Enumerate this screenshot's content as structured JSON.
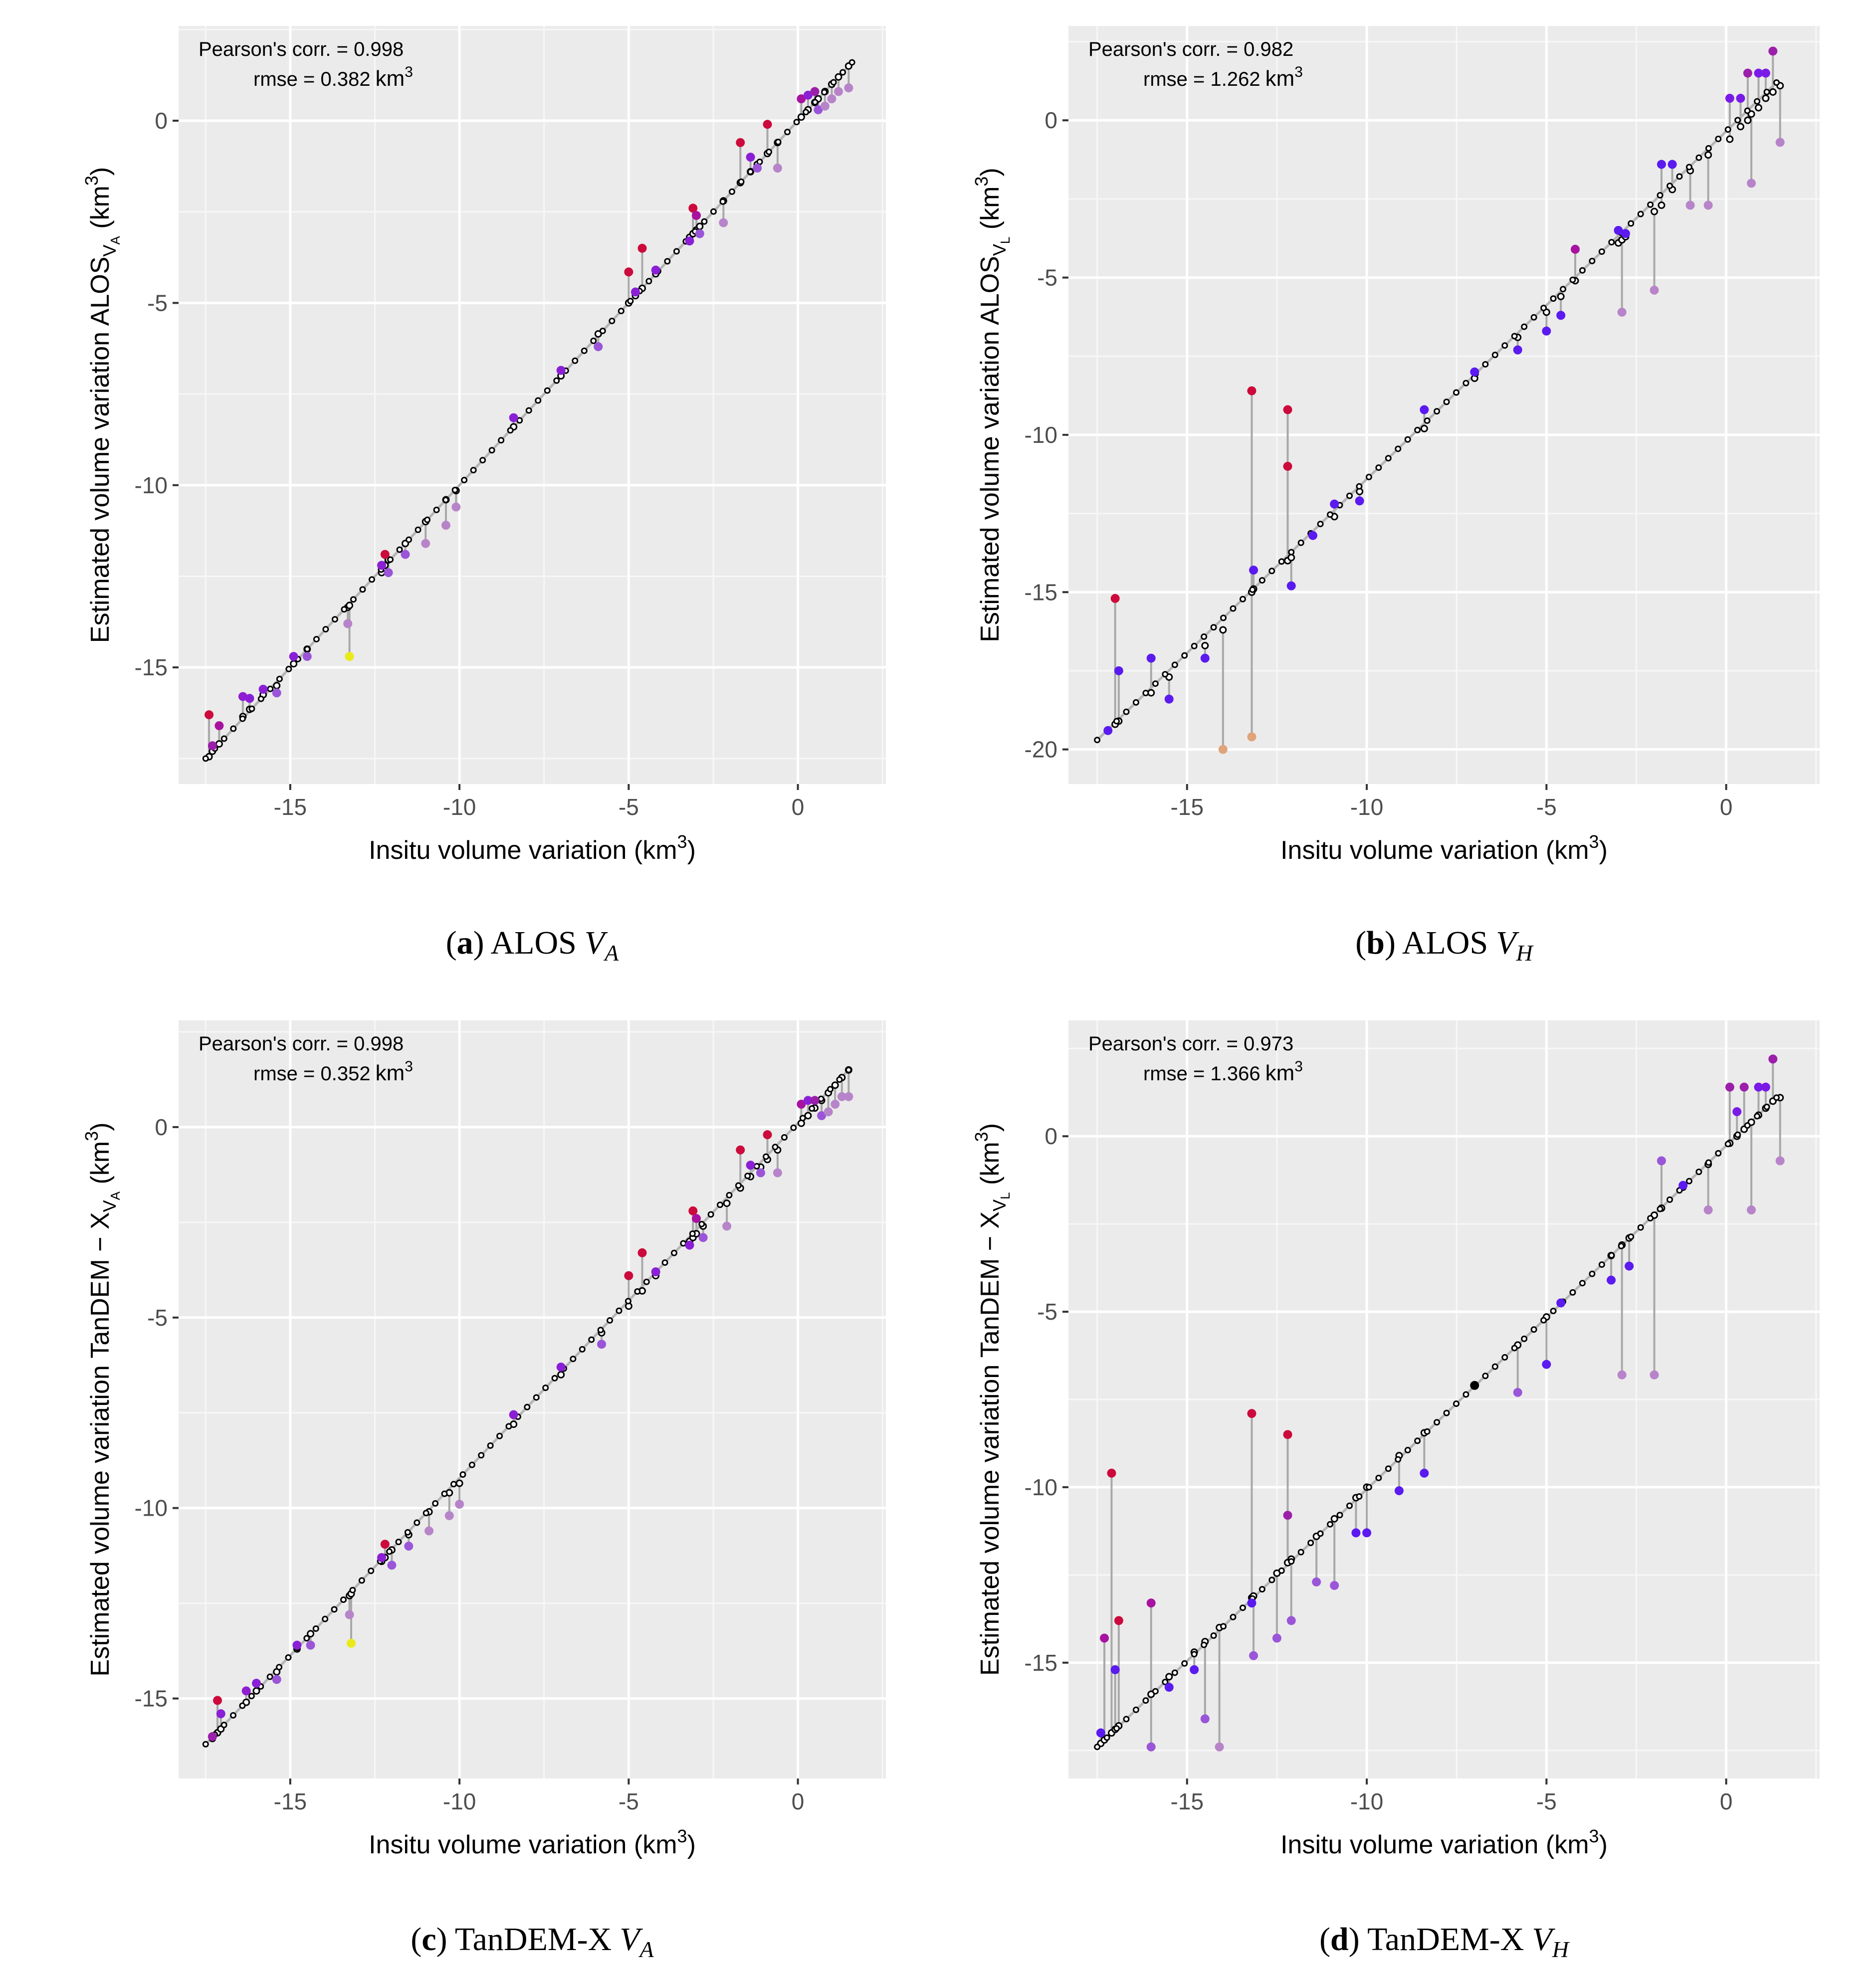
{
  "chart_data": [
    {
      "id": "a",
      "type": "scatter",
      "panel_label": "a",
      "caption_text": "ALOS",
      "caption_var_letter": "V",
      "caption_var_sub": "A",
      "xlabel": "Insitu volume variation (km",
      "xlabel_sup": "3",
      "xlabel_close": ")",
      "ylabel": "Estimated volume variation ALOS",
      "ylabel_sub": "V",
      "ylabel_subsub": "A",
      "ylabel_tail": " (km",
      "ylabel_sup": "3",
      "ylabel_close": ")",
      "annotation": {
        "pearson": "Pearson's corr. = 0.998",
        "rmse": "rmse = 0.382",
        "unit": "km",
        "unit_sup": "3"
      },
      "xlim": [
        -18.3,
        2.6
      ],
      "ylim": [
        -18.2,
        2.6
      ],
      "xticks": [
        -15,
        -10,
        -5,
        0
      ],
      "xtick_labels": [
        "-15",
        "-10",
        "-5",
        "0"
      ],
      "yticks": [
        -15,
        -10,
        -5,
        0
      ],
      "ytick_labels": [
        "-15",
        "-10",
        "-5",
        "0"
      ],
      "line": [
        [
          -17.5,
          -17.5
        ],
        [
          1.6,
          1.6
        ]
      ],
      "points": [
        [
          -17.4,
          -17.45,
          -16.3,
          "#cc0a3b"
        ],
        [
          -17.3,
          -17.3,
          -17.15,
          "#9b1faa"
        ],
        [
          -17.1,
          -17.1,
          -16.6,
          "#a812a0"
        ],
        [
          -16.4,
          -16.35,
          -15.8,
          "#8f1fd1"
        ],
        [
          -16.2,
          -16.15,
          -15.85,
          "#8a1fd6"
        ],
        [
          -15.8,
          -15.75,
          -15.6,
          "#8a1fd6"
        ],
        [
          -15.4,
          -15.5,
          -15.7,
          "#9a55d8"
        ],
        [
          -14.9,
          -14.9,
          -14.7,
          "#8a1fd6"
        ],
        [
          -14.5,
          -14.5,
          -14.7,
          "#9a55d8"
        ],
        [
          -13.3,
          -13.35,
          -13.8,
          "#b784c9"
        ],
        [
          -13.25,
          -13.3,
          -14.7,
          "#eaea1a"
        ],
        [
          -12.3,
          -12.4,
          -12.2,
          "#8a1fd6"
        ],
        [
          -12.2,
          -12.2,
          -11.9,
          "#cc0a3b"
        ],
        [
          -12.1,
          -12.05,
          -12.4,
          "#9a55d8"
        ],
        [
          -11.6,
          -11.6,
          -11.9,
          "#9a55d8"
        ],
        [
          -11.0,
          -11.0,
          -11.6,
          "#b784c9"
        ],
        [
          -10.4,
          -10.4,
          -11.1,
          "#b784c9"
        ],
        [
          -10.1,
          -10.15,
          -10.6,
          "#b784c9"
        ],
        [
          -8.4,
          -8.4,
          -8.15,
          "#8a1fd6"
        ],
        [
          -7.0,
          -7.0,
          -6.85,
          "#8a1fd6"
        ],
        [
          -5.9,
          -5.85,
          -6.2,
          "#9a55d8"
        ],
        [
          -5.0,
          -5.0,
          -4.15,
          "#cc0a3b"
        ],
        [
          -4.8,
          -4.8,
          -4.7,
          "#8a1fd6"
        ],
        [
          -4.6,
          -4.6,
          -3.5,
          "#cc0a3b"
        ],
        [
          -4.2,
          -4.2,
          -4.1,
          "#8a1fd6"
        ],
        [
          -3.2,
          -3.2,
          -3.3,
          "#8a1fd6"
        ],
        [
          -3.1,
          -3.1,
          -2.4,
          "#cc0a3b"
        ],
        [
          -3.0,
          -3.0,
          -2.6,
          "#a812a0"
        ],
        [
          -2.9,
          -2.9,
          -3.1,
          "#9a55d8"
        ],
        [
          -2.2,
          -2.2,
          -2.8,
          "#b784c9"
        ],
        [
          -1.7,
          -1.7,
          -0.6,
          "#cc0a3b"
        ],
        [
          -1.4,
          -1.4,
          -1.0,
          "#8a1fd6"
        ],
        [
          -1.2,
          -1.2,
          -1.3,
          "#9a55d8"
        ],
        [
          -0.9,
          -0.9,
          -0.1,
          "#cc0a3b"
        ],
        [
          -0.6,
          -0.6,
          -1.3,
          "#b784c9"
        ],
        [
          0.1,
          0.1,
          0.6,
          "#a812a0"
        ],
        [
          0.3,
          0.3,
          0.7,
          "#8a1fd6"
        ],
        [
          0.5,
          0.5,
          0.8,
          "#9b1faa"
        ],
        [
          0.6,
          0.6,
          0.3,
          "#9a55d8"
        ],
        [
          0.8,
          0.8,
          0.4,
          "#b784c9"
        ],
        [
          1.0,
          1.0,
          0.6,
          "#b784c9"
        ],
        [
          1.2,
          1.2,
          0.8,
          "#b784c9"
        ],
        [
          1.5,
          1.5,
          0.9,
          "#b784c9"
        ]
      ]
    },
    {
      "id": "b",
      "type": "scatter",
      "panel_label": "b",
      "caption_text": "ALOS",
      "caption_var_letter": "V",
      "caption_var_sub": "H",
      "xlabel": "Insitu volume variation (km",
      "xlabel_sup": "3",
      "xlabel_close": ")",
      "ylabel": "Estimated volume variation ALOS",
      "ylabel_sub": "V",
      "ylabel_subsub": "L",
      "ylabel_tail": " (km",
      "ylabel_sup": "3",
      "ylabel_close": ")",
      "annotation": {
        "pearson": "Pearson's corr. = 0.982",
        "rmse": "rmse = 1.262",
        "unit": "km",
        "unit_sup": "3"
      },
      "xlim": [
        -18.3,
        2.6
      ],
      "ylim": [
        -21.1,
        3.0
      ],
      "xticks": [
        -15,
        -10,
        -5,
        0
      ],
      "xtick_labels": [
        "-15",
        "-10",
        "-5",
        "0"
      ],
      "yticks": [
        -20,
        -15,
        -10,
        -5,
        0
      ],
      "ytick_labels": [
        "-20",
        "-15",
        "-10",
        "-5",
        "0"
      ],
      "line": [
        [
          -17.5,
          -19.7
        ],
        [
          1.4,
          1.2
        ]
      ],
      "points": [
        [
          -17.2,
          -19.4,
          -19.4,
          "#5a1af0"
        ],
        [
          -17.0,
          -19.2,
          -15.2,
          "#cc0a3b"
        ],
        [
          -16.9,
          -19.1,
          -17.5,
          "#5a1af0"
        ],
        [
          -16.0,
          -18.2,
          -17.1,
          "#5a1af0"
        ],
        [
          -15.5,
          -17.7,
          -18.4,
          "#5a1af0"
        ],
        [
          -14.5,
          -16.7,
          -17.1,
          "#5a1af0"
        ],
        [
          -14.0,
          -16.2,
          -20.0,
          "#e0a37a"
        ],
        [
          -13.2,
          -15.0,
          -8.6,
          "#cc0a3b"
        ],
        [
          -13.2,
          -15.0,
          -19.6,
          "#e0a37a"
        ],
        [
          -13.15,
          -14.9,
          -14.3,
          "#5a1af0"
        ],
        [
          -12.2,
          -14.0,
          -9.2,
          "#cc0a3b"
        ],
        [
          -12.2,
          -14.0,
          -11.0,
          "#cc0a3b"
        ],
        [
          -12.1,
          -13.9,
          -14.8,
          "#5a1af0"
        ],
        [
          -11.5,
          -13.2,
          -13.2,
          "#5a1af0"
        ],
        [
          -10.9,
          -12.6,
          -12.2,
          "#5a1af0"
        ],
        [
          -10.2,
          -11.8,
          -12.1,
          "#5a1af0"
        ],
        [
          -8.4,
          -9.8,
          -9.2,
          "#5a1af0"
        ],
        [
          -7.0,
          -8.2,
          -8.0,
          "#5a1af0"
        ],
        [
          -5.8,
          -6.9,
          -7.3,
          "#5a1af0"
        ],
        [
          -5.0,
          -6.1,
          -6.7,
          "#5a1af0"
        ],
        [
          -4.6,
          -5.6,
          -6.2,
          "#5a1af0"
        ],
        [
          -4.2,
          -5.1,
          -4.1,
          "#a812a0"
        ],
        [
          -3.0,
          -3.9,
          -3.5,
          "#5a1af0"
        ],
        [
          -2.9,
          -3.8,
          -6.1,
          "#b784c9"
        ],
        [
          -2.8,
          -3.7,
          -3.6,
          "#5a1af0"
        ],
        [
          -2.0,
          -2.9,
          -5.4,
          "#b784c9"
        ],
        [
          -1.8,
          -2.7,
          -1.4,
          "#5a1af0"
        ],
        [
          -1.5,
          -2.2,
          -1.4,
          "#5a1af0"
        ],
        [
          -1.0,
          -1.6,
          -2.7,
          "#b784c9"
        ],
        [
          -0.5,
          -1.1,
          -2.7,
          "#b784c9"
        ],
        [
          0.1,
          -0.6,
          0.7,
          "#7a1ae8"
        ],
        [
          0.4,
          -0.2,
          0.7,
          "#7a1ae8"
        ],
        [
          0.6,
          0.0,
          1.5,
          "#9b1faa"
        ],
        [
          0.7,
          0.2,
          -2.0,
          "#b784c9"
        ],
        [
          0.9,
          0.4,
          1.5,
          "#7a1ae8"
        ],
        [
          1.1,
          0.7,
          1.5,
          "#7a1ae8"
        ],
        [
          1.3,
          0.9,
          2.2,
          "#9b1faa"
        ],
        [
          1.5,
          1.1,
          -0.7,
          "#b784c9"
        ]
      ]
    },
    {
      "id": "c",
      "type": "scatter",
      "panel_label": "c",
      "caption_text": "TanDEM-X",
      "caption_var_letter": "V",
      "caption_var_sub": "A",
      "xlabel": "Insitu volume variation (km",
      "xlabel_sup": "3",
      "xlabel_close": ")",
      "ylabel": "Estimated volume variation TanDEM − X",
      "ylabel_sub": "V",
      "ylabel_subsub": "A",
      "ylabel_tail": " (km",
      "ylabel_sup": "3",
      "ylabel_close": ")",
      "annotation": {
        "pearson": "Pearson's corr. = 0.998",
        "rmse": "rmse = 0.352",
        "unit": "km",
        "unit_sup": "3"
      },
      "xlim": [
        -18.3,
        2.6
      ],
      "ylim": [
        -17.1,
        2.8
      ],
      "xticks": [
        -15,
        -10,
        -5,
        0
      ],
      "xtick_labels": [
        "-15",
        "-10",
        "-5",
        "0"
      ],
      "yticks": [
        -15,
        -10,
        -5,
        0
      ],
      "ytick_labels": [
        "-15",
        "-10",
        "-5",
        "0"
      ],
      "line": [
        [
          -17.5,
          -16.2
        ],
        [
          1.5,
          1.5
        ]
      ],
      "points": [
        [
          -17.3,
          -16.05,
          -16.0,
          "#9b1faa"
        ],
        [
          -17.15,
          -15.9,
          -15.05,
          "#cc0a3b"
        ],
        [
          -17.05,
          -15.8,
          -15.4,
          "#8a1fd6"
        ],
        [
          -16.3,
          -15.1,
          -14.8,
          "#8f1fd1"
        ],
        [
          -16.0,
          -14.8,
          -14.6,
          "#8a1fd6"
        ],
        [
          -15.4,
          -14.3,
          -14.5,
          "#9a55d8"
        ],
        [
          -14.8,
          -13.7,
          -13.6,
          "#8a1fd6"
        ],
        [
          -14.4,
          -13.3,
          -13.6,
          "#9a55d8"
        ],
        [
          -13.25,
          -12.3,
          -12.8,
          "#b784c9"
        ],
        [
          -13.2,
          -12.25,
          -13.55,
          "#eaea1a"
        ],
        [
          -12.3,
          -11.4,
          -11.3,
          "#8a1fd6"
        ],
        [
          -12.2,
          -11.3,
          -10.95,
          "#cc0a3b"
        ],
        [
          -12.0,
          -11.1,
          -11.5,
          "#9a55d8"
        ],
        [
          -11.5,
          -10.7,
          -11.0,
          "#9a55d8"
        ],
        [
          -10.9,
          -10.1,
          -10.6,
          "#b784c9"
        ],
        [
          -10.3,
          -9.6,
          -10.2,
          "#b784c9"
        ],
        [
          -10.0,
          -9.35,
          -9.9,
          "#b784c9"
        ],
        [
          -8.4,
          -7.8,
          -7.55,
          "#8a1fd6"
        ],
        [
          -7.0,
          -6.5,
          -6.3,
          "#8a1fd6"
        ],
        [
          -5.8,
          -5.4,
          -5.7,
          "#9a55d8"
        ],
        [
          -5.0,
          -4.7,
          -3.9,
          "#cc0a3b"
        ],
        [
          -4.6,
          -4.3,
          -3.3,
          "#cc0a3b"
        ],
        [
          -4.2,
          -3.9,
          -3.8,
          "#8a1fd6"
        ],
        [
          -3.2,
          -3.0,
          -3.1,
          "#8a1fd6"
        ],
        [
          -3.1,
          -2.9,
          -2.2,
          "#cc0a3b"
        ],
        [
          -3.0,
          -2.8,
          -2.4,
          "#a812a0"
        ],
        [
          -2.8,
          -2.6,
          -2.9,
          "#9a55d8"
        ],
        [
          -2.1,
          -2.0,
          -2.6,
          "#b784c9"
        ],
        [
          -1.7,
          -1.6,
          -0.6,
          "#cc0a3b"
        ],
        [
          -1.4,
          -1.3,
          -1.0,
          "#8a1fd6"
        ],
        [
          -1.1,
          -1.05,
          -1.2,
          "#9a55d8"
        ],
        [
          -0.9,
          -0.85,
          -0.2,
          "#cc0a3b"
        ],
        [
          -0.6,
          -0.6,
          -1.2,
          "#b784c9"
        ],
        [
          0.1,
          0.1,
          0.6,
          "#a812a0"
        ],
        [
          0.3,
          0.3,
          0.7,
          "#8a1fd6"
        ],
        [
          0.5,
          0.5,
          0.7,
          "#9b1faa"
        ],
        [
          0.7,
          0.7,
          0.3,
          "#9a55d8"
        ],
        [
          0.9,
          0.9,
          0.4,
          "#b784c9"
        ],
        [
          1.1,
          1.1,
          0.6,
          "#b784c9"
        ],
        [
          1.3,
          1.3,
          0.8,
          "#b784c9"
        ],
        [
          1.5,
          1.5,
          0.8,
          "#b784c9"
        ]
      ]
    },
    {
      "id": "d",
      "type": "scatter",
      "panel_label": "d",
      "caption_text": "TanDEM-X",
      "caption_var_letter": "V",
      "caption_var_sub": "H",
      "xlabel": "Insitu volume variation (km",
      "xlabel_sup": "3",
      "xlabel_close": ")",
      "ylabel": "Estimated volume variation TanDEM − X",
      "ylabel_sub": "V",
      "ylabel_subsub": "L",
      "ylabel_tail": " (km",
      "ylabel_sup": "3",
      "ylabel_close": ")",
      "annotation": {
        "pearson": "Pearson's corr. = 0.973",
        "rmse": "rmse = 1.366",
        "unit": "km",
        "unit_sup": "3"
      },
      "xlim": [
        -18.3,
        2.6
      ],
      "ylim": [
        -18.3,
        3.3
      ],
      "xticks": [
        -15,
        -10,
        -5,
        0
      ],
      "xtick_labels": [
        "-15",
        "-10",
        "-5",
        "0"
      ],
      "yticks": [
        -15,
        -10,
        -5,
        0
      ],
      "ytick_labels": [
        "-15",
        "-10",
        "-5",
        "0"
      ],
      "line": [
        [
          -17.5,
          -17.4
        ],
        [
          1.4,
          1.1
        ]
      ],
      "points": [
        [
          -17.4,
          -17.3,
          -17.0,
          "#5a1af0"
        ],
        [
          -17.3,
          -17.2,
          -14.3,
          "#a812a0"
        ],
        [
          -17.1,
          -17.0,
          -9.6,
          "#cc0a3b"
        ],
        [
          -17.0,
          -16.9,
          -15.2,
          "#5a1af0"
        ],
        [
          -16.9,
          -16.8,
          -13.8,
          "#cc0a3b"
        ],
        [
          -16.0,
          -15.9,
          -17.4,
          "#9a55d8"
        ],
        [
          -16.0,
          -15.9,
          -13.3,
          "#a812a0"
        ],
        [
          -15.5,
          -15.4,
          -15.7,
          "#5a1af0"
        ],
        [
          -14.8,
          -14.7,
          -15.2,
          "#5a1af0"
        ],
        [
          -14.5,
          -14.4,
          -16.6,
          "#9a55d8"
        ],
        [
          -14.1,
          -14.0,
          -17.4,
          "#b784c9"
        ],
        [
          -13.2,
          -13.15,
          -7.9,
          "#cc0a3b"
        ],
        [
          -13.2,
          -13.15,
          -13.3,
          "#5a1af0"
        ],
        [
          -13.15,
          -13.1,
          -14.8,
          "#9a55d8"
        ],
        [
          -12.5,
          -12.45,
          -14.3,
          "#9a55d8"
        ],
        [
          -12.2,
          -12.15,
          -8.5,
          "#cc0a3b"
        ],
        [
          -12.2,
          -12.15,
          -10.8,
          "#9b1faa"
        ],
        [
          -12.1,
          -12.05,
          -13.8,
          "#9a55d8"
        ],
        [
          -11.4,
          -11.4,
          -12.7,
          "#9a55d8"
        ],
        [
          -10.9,
          -10.9,
          -12.8,
          "#9a55d8"
        ],
        [
          -10.3,
          -10.3,
          -11.3,
          "#5a1af0"
        ],
        [
          -10.0,
          -10.0,
          -11.3,
          "#5a1af0"
        ],
        [
          -9.1,
          -9.1,
          -10.1,
          "#5a1af0"
        ],
        [
          -8.4,
          -8.45,
          -9.6,
          "#5a1af0"
        ],
        [
          -7.0,
          -7.1,
          -7.1,
          "#000000"
        ],
        [
          -5.8,
          -5.95,
          -7.3,
          "#9a55d8"
        ],
        [
          -5.0,
          -5.15,
          -6.5,
          "#5a1af0"
        ],
        [
          -4.6,
          -4.75,
          -4.75,
          "#5a1af0"
        ],
        [
          -3.2,
          -3.4,
          -4.1,
          "#5a1af0"
        ],
        [
          -2.9,
          -3.1,
          -6.8,
          "#b784c9"
        ],
        [
          -2.7,
          -2.9,
          -3.7,
          "#5a1af0"
        ],
        [
          -2.0,
          -2.25,
          -6.8,
          "#b784c9"
        ],
        [
          -1.8,
          -2.05,
          -0.7,
          "#9a55d8"
        ],
        [
          -1.2,
          -1.45,
          -1.4,
          "#5a1af0"
        ],
        [
          -0.5,
          -0.8,
          -2.1,
          "#b784c9"
        ],
        [
          0.1,
          -0.2,
          1.4,
          "#9b1faa"
        ],
        [
          0.3,
          0.0,
          0.7,
          "#7a1ae8"
        ],
        [
          0.5,
          0.2,
          1.4,
          "#9b1faa"
        ],
        [
          0.7,
          0.4,
          -2.1,
          "#b784c9"
        ],
        [
          0.9,
          0.6,
          1.4,
          "#7a1ae8"
        ],
        [
          1.1,
          0.8,
          1.4,
          "#7a1ae8"
        ],
        [
          1.3,
          1.0,
          2.2,
          "#9b1faa"
        ],
        [
          1.5,
          1.1,
          -0.7,
          "#b784c9"
        ]
      ]
    }
  ]
}
